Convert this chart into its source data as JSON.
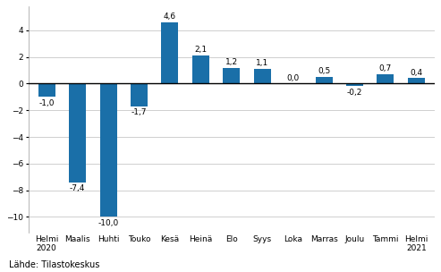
{
  "categories": [
    "Helmi\n2020",
    "Maalis",
    "Huhti",
    "Touko",
    "Kesä",
    "Heinä",
    "Elo",
    "Syys",
    "Loka",
    "Marras",
    "Joulu",
    "Tammi",
    "Helmi\n2021"
  ],
  "values": [
    -1.0,
    -7.4,
    -10.0,
    -1.7,
    4.6,
    2.1,
    1.2,
    1.1,
    0.0,
    0.5,
    -0.2,
    0.7,
    0.4
  ],
  "bar_color": "#1a6fa8",
  "ylim": [
    -11.2,
    5.8
  ],
  "yticks": [
    -10,
    -8,
    -6,
    -4,
    -2,
    0,
    2,
    4
  ],
  "source_text": "Lähde: Tilastokeskus",
  "background_color": "#ffffff",
  "grid_color": "#c8c8c8",
  "label_fontsize": 6.5,
  "tick_fontsize": 6.5,
  "source_fontsize": 7.0,
  "bar_width": 0.55
}
